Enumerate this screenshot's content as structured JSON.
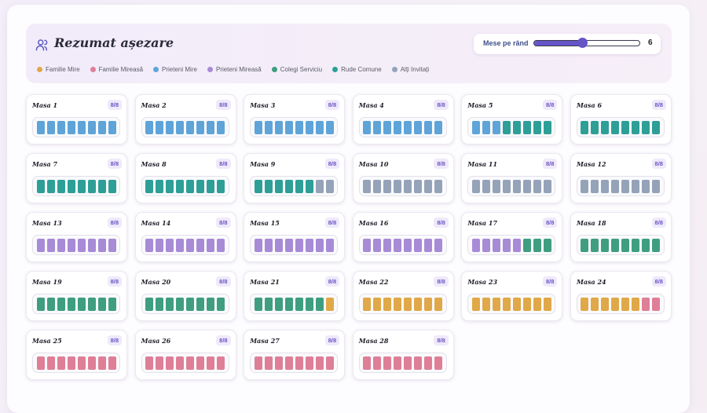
{
  "header": {
    "title": "Rezumat așezare"
  },
  "slider": {
    "label": "Mese pe rând",
    "value": 6,
    "min": 1,
    "max": 12
  },
  "legend": [
    {
      "key": "mire",
      "label": "Familie Mire",
      "color": "#e0a848"
    },
    {
      "key": "mireasa",
      "label": "Familie Mireasă",
      "color": "#de7f97"
    },
    {
      "key": "prieteni_mire",
      "label": "Prieteni Mire",
      "color": "#5fa4d8"
    },
    {
      "key": "prieteni_mireasa",
      "label": "Prieteni Mireasă",
      "color": "#a88bd6"
    },
    {
      "key": "colegi",
      "label": "Colegi Serviciu",
      "color": "#3f9e80"
    },
    {
      "key": "rude",
      "label": "Rude Comune",
      "color": "#2e9f97"
    },
    {
      "key": "altii",
      "label": "Alți Invitați",
      "color": "#95a3b8"
    }
  ],
  "tables": [
    {
      "name": "Masa 1",
      "count": "8/8",
      "seats": [
        "prieteni_mire",
        "prieteni_mire",
        "prieteni_mire",
        "prieteni_mire",
        "prieteni_mire",
        "prieteni_mire",
        "prieteni_mire",
        "prieteni_mire"
      ]
    },
    {
      "name": "Masa 2",
      "count": "8/8",
      "seats": [
        "prieteni_mire",
        "prieteni_mire",
        "prieteni_mire",
        "prieteni_mire",
        "prieteni_mire",
        "prieteni_mire",
        "prieteni_mire",
        "prieteni_mire"
      ]
    },
    {
      "name": "Masa 3",
      "count": "8/8",
      "seats": [
        "prieteni_mire",
        "prieteni_mire",
        "prieteni_mire",
        "prieteni_mire",
        "prieteni_mire",
        "prieteni_mire",
        "prieteni_mire",
        "prieteni_mire"
      ]
    },
    {
      "name": "Masa 4",
      "count": "8/8",
      "seats": [
        "prieteni_mire",
        "prieteni_mire",
        "prieteni_mire",
        "prieteni_mire",
        "prieteni_mire",
        "prieteni_mire",
        "prieteni_mire",
        "prieteni_mire"
      ]
    },
    {
      "name": "Masa 5",
      "count": "8/8",
      "seats": [
        "prieteni_mire",
        "prieteni_mire",
        "prieteni_mire",
        "rude",
        "rude",
        "rude",
        "rude",
        "rude"
      ]
    },
    {
      "name": "Masa 6",
      "count": "8/8",
      "seats": [
        "rude",
        "rude",
        "rude",
        "rude",
        "rude",
        "rude",
        "rude",
        "rude"
      ]
    },
    {
      "name": "Masa 7",
      "count": "8/8",
      "seats": [
        "rude",
        "rude",
        "rude",
        "rude",
        "rude",
        "rude",
        "rude",
        "rude"
      ]
    },
    {
      "name": "Masa 8",
      "count": "8/8",
      "seats": [
        "rude",
        "rude",
        "rude",
        "rude",
        "rude",
        "rude",
        "rude",
        "rude"
      ]
    },
    {
      "name": "Masa 9",
      "count": "8/8",
      "seats": [
        "rude",
        "rude",
        "rude",
        "rude",
        "rude",
        "rude",
        "altii",
        "altii"
      ]
    },
    {
      "name": "Masa 10",
      "count": "8/8",
      "seats": [
        "altii",
        "altii",
        "altii",
        "altii",
        "altii",
        "altii",
        "altii",
        "altii"
      ]
    },
    {
      "name": "Masa 11",
      "count": "8/8",
      "seats": [
        "altii",
        "altii",
        "altii",
        "altii",
        "altii",
        "altii",
        "altii",
        "altii"
      ]
    },
    {
      "name": "Masa 12",
      "count": "8/8",
      "seats": [
        "altii",
        "altii",
        "altii",
        "altii",
        "altii",
        "altii",
        "altii",
        "altii"
      ]
    },
    {
      "name": "Masa 13",
      "count": "8/8",
      "seats": [
        "prieteni_mireasa",
        "prieteni_mireasa",
        "prieteni_mireasa",
        "prieteni_mireasa",
        "prieteni_mireasa",
        "prieteni_mireasa",
        "prieteni_mireasa",
        "prieteni_mireasa"
      ]
    },
    {
      "name": "Masa 14",
      "count": "8/8",
      "seats": [
        "prieteni_mireasa",
        "prieteni_mireasa",
        "prieteni_mireasa",
        "prieteni_mireasa",
        "prieteni_mireasa",
        "prieteni_mireasa",
        "prieteni_mireasa",
        "prieteni_mireasa"
      ]
    },
    {
      "name": "Masa 15",
      "count": "8/8",
      "seats": [
        "prieteni_mireasa",
        "prieteni_mireasa",
        "prieteni_mireasa",
        "prieteni_mireasa",
        "prieteni_mireasa",
        "prieteni_mireasa",
        "prieteni_mireasa",
        "prieteni_mireasa"
      ]
    },
    {
      "name": "Masa 16",
      "count": "8/8",
      "seats": [
        "prieteni_mireasa",
        "prieteni_mireasa",
        "prieteni_mireasa",
        "prieteni_mireasa",
        "prieteni_mireasa",
        "prieteni_mireasa",
        "prieteni_mireasa",
        "prieteni_mireasa"
      ]
    },
    {
      "name": "Masa 17",
      "count": "8/8",
      "seats": [
        "prieteni_mireasa",
        "prieteni_mireasa",
        "prieteni_mireasa",
        "prieteni_mireasa",
        "prieteni_mireasa",
        "colegi",
        "colegi",
        "colegi"
      ]
    },
    {
      "name": "Masa 18",
      "count": "8/8",
      "seats": [
        "colegi",
        "colegi",
        "colegi",
        "colegi",
        "colegi",
        "colegi",
        "colegi",
        "colegi"
      ]
    },
    {
      "name": "Masa 19",
      "count": "8/8",
      "seats": [
        "colegi",
        "colegi",
        "colegi",
        "colegi",
        "colegi",
        "colegi",
        "colegi",
        "colegi"
      ]
    },
    {
      "name": "Masa 20",
      "count": "8/8",
      "seats": [
        "colegi",
        "colegi",
        "colegi",
        "colegi",
        "colegi",
        "colegi",
        "colegi",
        "colegi"
      ]
    },
    {
      "name": "Masa 21",
      "count": "8/8",
      "seats": [
        "colegi",
        "colegi",
        "colegi",
        "colegi",
        "colegi",
        "colegi",
        "colegi",
        "mire"
      ]
    },
    {
      "name": "Masa 22",
      "count": "8/8",
      "seats": [
        "mire",
        "mire",
        "mire",
        "mire",
        "mire",
        "mire",
        "mire",
        "mire"
      ]
    },
    {
      "name": "Masa 23",
      "count": "8/8",
      "seats": [
        "mire",
        "mire",
        "mire",
        "mire",
        "mire",
        "mire",
        "mire",
        "mire"
      ]
    },
    {
      "name": "Masa 24",
      "count": "8/8",
      "seats": [
        "mire",
        "mire",
        "mire",
        "mire",
        "mire",
        "mire",
        "mireasa",
        "mireasa"
      ]
    },
    {
      "name": "Masa 25",
      "count": "8/8",
      "seats": [
        "mireasa",
        "mireasa",
        "mireasa",
        "mireasa",
        "mireasa",
        "mireasa",
        "mireasa",
        "mireasa"
      ]
    },
    {
      "name": "Masa 26",
      "count": "8/8",
      "seats": [
        "mireasa",
        "mireasa",
        "mireasa",
        "mireasa",
        "mireasa",
        "mireasa",
        "mireasa",
        "mireasa"
      ]
    },
    {
      "name": "Masa 27",
      "count": "8/8",
      "seats": [
        "mireasa",
        "mireasa",
        "mireasa",
        "mireasa",
        "mireasa",
        "mireasa",
        "mireasa",
        "mireasa"
      ]
    },
    {
      "name": "Masa 28",
      "count": "8/8",
      "seats": [
        "mireasa",
        "mireasa",
        "mireasa",
        "mireasa",
        "mireasa",
        "mireasa",
        "mireasa",
        "mireasa"
      ]
    }
  ]
}
